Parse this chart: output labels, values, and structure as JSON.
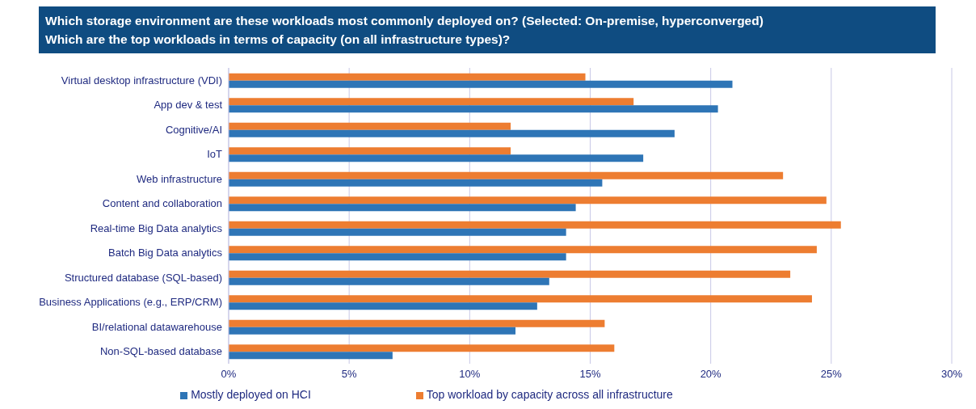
{
  "chart_data": {
    "type": "bar",
    "orientation": "horizontal",
    "title": "Which storage environment are these workloads most commonly deployed on? (Selected: On-premise, hyperconverged)",
    "subtitle": "Which are the top workloads in terms of capacity (on all infrastructure types)?",
    "categories": [
      "Virtual desktop infrastructure (VDI)",
      "App dev & test",
      "Cognitive/AI",
      "IoT",
      "Web infrastructure",
      "Content and collaboration",
      "Real-time Big Data analytics",
      "Batch Big Data analytics",
      "Structured database (SQL-based)",
      "Business Applications (e.g., ERP/CRM)",
      "BI/relational datawarehouse",
      "Non-SQL-based database"
    ],
    "series": [
      {
        "name": "Top workload by capacity across all infrastructure",
        "color": "#ed7d31",
        "values": [
          14.8,
          16.8,
          11.7,
          11.7,
          23.0,
          24.8,
          25.4,
          24.4,
          23.3,
          24.2,
          15.6,
          16.0
        ]
      },
      {
        "name": "Mostly deployed on HCI",
        "color": "#2e75b6",
        "values": [
          20.9,
          20.3,
          18.5,
          17.2,
          15.5,
          14.4,
          14.0,
          14.0,
          13.3,
          12.8,
          11.9,
          6.8
        ]
      }
    ],
    "xlim": [
      0,
      30
    ],
    "xticks": [
      {
        "value": 0,
        "label": "0%"
      },
      {
        "value": 5,
        "label": "5%"
      },
      {
        "value": 10,
        "label": "10%"
      },
      {
        "value": 15,
        "label": "15%"
      },
      {
        "value": 20,
        "label": "20%"
      },
      {
        "value": 25,
        "label": "25%"
      },
      {
        "value": 30,
        "label": "30%"
      }
    ],
    "grid": "x",
    "legend": "bottom"
  }
}
